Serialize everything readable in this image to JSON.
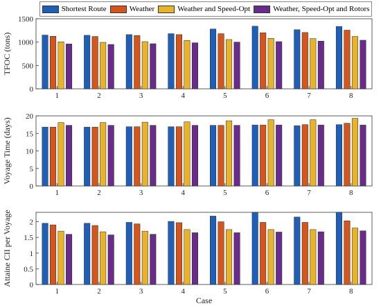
{
  "chart_data": [
    {
      "type": "bar",
      "ylabel": "TFOC (tons)",
      "xlabel": "",
      "categories": [
        "1",
        "2",
        "3",
        "4",
        "5",
        "6",
        "7",
        "8"
      ],
      "ylim": [
        0,
        1500
      ],
      "yticks": [
        "0",
        "500",
        "1000",
        "1500"
      ],
      "series": [
        {
          "name": "Shortest Route",
          "values": [
            1150,
            1145,
            1160,
            1180,
            1280,
            1340,
            1265,
            1335
          ]
        },
        {
          "name": "Weather",
          "values": [
            1125,
            1120,
            1140,
            1160,
            1180,
            1200,
            1205,
            1255
          ]
        },
        {
          "name": "Weather and Speed-Opt",
          "values": [
            1005,
            995,
            1010,
            1035,
            1055,
            1080,
            1075,
            1120
          ]
        },
        {
          "name": "Weather, Speed-Opt and Rotors",
          "values": [
            960,
            950,
            965,
            985,
            1000,
            1010,
            1020,
            1040
          ]
        }
      ]
    },
    {
      "type": "bar",
      "ylabel": "Voyage Time (days)",
      "xlabel": "",
      "categories": [
        "1",
        "2",
        "3",
        "4",
        "5",
        "6",
        "7",
        "8"
      ],
      "ylim": [
        0,
        20
      ],
      "yticks": [
        "0",
        "5",
        "10",
        "15",
        "20"
      ],
      "series": [
        {
          "name": "Shortest Route",
          "values": [
            16.8,
            16.8,
            16.9,
            16.9,
            17.3,
            17.4,
            17.2,
            17.5
          ]
        },
        {
          "name": "Weather",
          "values": [
            16.8,
            16.8,
            16.9,
            16.9,
            17.3,
            17.4,
            17.5,
            17.9
          ]
        },
        {
          "name": "Weather and Speed-Opt",
          "values": [
            18.1,
            18.1,
            18.2,
            18.3,
            18.6,
            18.9,
            18.9,
            19.3
          ]
        },
        {
          "name": "Weather, Speed-Opt and Rotors",
          "values": [
            17.3,
            17.3,
            17.3,
            17.3,
            17.3,
            17.4,
            17.4,
            17.4
          ]
        }
      ]
    },
    {
      "type": "bar",
      "ylabel": "Attaine CII per Voyage",
      "xlabel": "Case",
      "categories": [
        "1",
        "2",
        "3",
        "4",
        "5",
        "6",
        "7",
        "8"
      ],
      "ylim": [
        0,
        2.3
      ],
      "yticks": [
        "0",
        "0.5",
        "1",
        "1.5",
        "2"
      ],
      "series": [
        {
          "name": "Shortest Route",
          "values": [
            1.95,
            1.95,
            1.98,
            2.01,
            2.18,
            2.3,
            2.15,
            2.3
          ]
        },
        {
          "name": "Weather",
          "values": [
            1.9,
            1.88,
            1.93,
            1.97,
            2.0,
            1.98,
            1.98,
            2.03
          ]
        },
        {
          "name": "Weather and Speed-Opt",
          "values": [
            1.7,
            1.68,
            1.7,
            1.75,
            1.75,
            1.75,
            1.75,
            1.8
          ]
        },
        {
          "name": "Weather, Speed-Opt and Rotors",
          "values": [
            1.6,
            1.58,
            1.6,
            1.65,
            1.65,
            1.67,
            1.68,
            1.71
          ]
        }
      ]
    }
  ],
  "legend": [
    {
      "label": "Shortest Route",
      "color": "#1f5fb8"
    },
    {
      "label": "Weather",
      "color": "#d4561c"
    },
    {
      "label": "Weather and Speed-Opt",
      "color": "#e8b32a"
    },
    {
      "label": "Weather, Speed-Opt and Rotors",
      "color": "#6a2c8a"
    }
  ]
}
